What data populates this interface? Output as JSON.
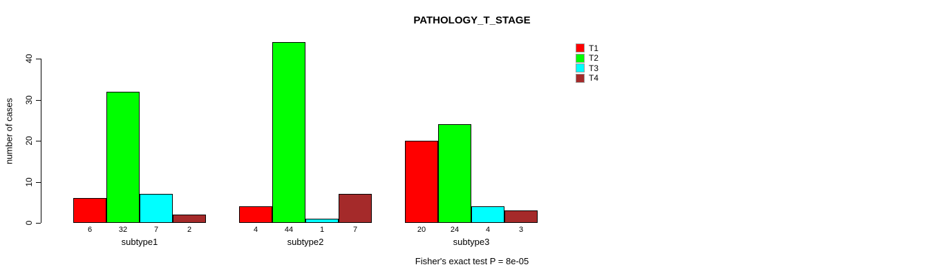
{
  "chart_data": {
    "type": "bar",
    "title": "PATHOLOGY_T_STAGE",
    "ylabel": "number of cases",
    "xlabel": "",
    "categories": [
      "subtype1",
      "subtype2",
      "subtype3"
    ],
    "series": [
      {
        "name": "T1",
        "color": "#FF0000",
        "values": [
          6,
          4,
          20
        ]
      },
      {
        "name": "T2",
        "color": "#00FF00",
        "values": [
          32,
          44,
          24
        ]
      },
      {
        "name": "T3",
        "color": "#00FFFF",
        "values": [
          7,
          1,
          4
        ]
      },
      {
        "name": "T4",
        "color": "#A52A2A",
        "values": [
          2,
          7,
          3
        ]
      }
    ],
    "bar_value_labels": {
      "subtype1": [
        6,
        32,
        7,
        2
      ],
      "subtype2": [
        4,
        44,
        1,
        7
      ],
      "subtype3": [
        20,
        24,
        4,
        3
      ]
    },
    "yticks": [
      0,
      10,
      20,
      30,
      40
    ],
    "ylim": [
      0,
      44.8
    ],
    "grid": false,
    "legend_position": "top-right",
    "legend_entries": [
      "T1",
      "T2",
      "T3",
      "T4"
    ],
    "annotation": "Fisher's exact test P = 8e-05",
    "colors": {
      "T1": "#FF0000",
      "T2": "#00FF00",
      "T3": "#00FFFF",
      "T4": "#A52A2A",
      "axis": "#000000",
      "background": "#FFFFFF"
    }
  }
}
